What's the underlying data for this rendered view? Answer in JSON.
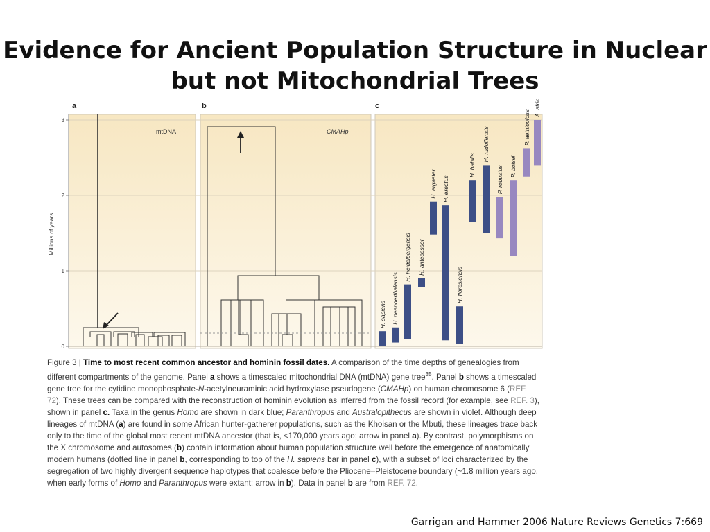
{
  "slide": {
    "title_line1": "Evidence for Ancient Population Structure in Nuclear",
    "title_line2": "but not Mitochondrial Trees",
    "citation": "Garrigan and Hammer 2006 Nature Reviews Genetics 7:669"
  },
  "figure": {
    "panel_a_label": "a",
    "panel_b_label": "b",
    "panel_c_label": "c",
    "panel_a_tree": "mtDNA",
    "panel_b_tree": "CMAHp",
    "y_axis_label": "Millions of years",
    "y_ticks": [
      "3",
      "2",
      "1",
      "0"
    ],
    "caption": {
      "fig_no": "Figure 3 | ",
      "title": "Time to most recent common ancestor and hominin fossil dates.",
      "t1": " A comparison of the time depths of genealogies from different compartments of the genome. Panel ",
      "a": "a",
      "t2": " shows a timescaled mitochondrial DNA (mtDNA) gene tree",
      "sup35": "35",
      "t3": ". Panel ",
      "b": "b",
      "t4": " shows a timescaled gene tree for the cytidine monophosphate-",
      "n": "N",
      "t5": "-acetylneuraminic acid hydroxylase pseudogene (",
      "cmahp": "CMAHp",
      "t6": ") on human chromosome 6 (",
      "ref72a": "REF. 72",
      "t7": "). These trees can be compared with the reconstruction of hominin evolution as inferred from the fossil record (for example, see ",
      "ref3": "REF. 3",
      "t8": "), shown in panel ",
      "c": "c.",
      "t9": " Taxa in the genus ",
      "homo": "Homo",
      "t10": " are shown in dark blue; ",
      "paranthropus": "Paranthropus",
      "t11": " and ",
      "australopithecus": "Australopithecus",
      "t12": " are shown in violet. Although deep lineages of mtDNA (",
      "a2": "a",
      "t13": ") are found in some African hunter-gatherer populations, such as the Khoisan or the Mbuti, these lineages trace back only to the time of the global most recent mtDNA ancestor (that is, <170,000 years ago; arrow in panel ",
      "a3": "a",
      "t14": "). By contrast, polymorphisms on the X chromosome and autosomes (",
      "b2": "b",
      "t15": ") contain information about human population structure well before the emergence of anatomically modern humans (dotted line in panel ",
      "b3": "b",
      "t16": ", corresponding to top of the ",
      "hsapiens": "H. sapiens",
      "t17": " bar in panel ",
      "c2": "c",
      "t18": "), with a subset of loci characterized by the segregation of two highly divergent sequence haplotypes that coalesce before the Pliocene–Pleistocene boundary (~1.8 million years ago, when early forms of ",
      "homo2": "Homo",
      "t19": " and ",
      "paranthropus2": "Paranthropus",
      "t20": " were extant; arrow in ",
      "b4": "b",
      "t21": "). Data in panel ",
      "b5": "b",
      "t22": " are from ",
      "ref72b": "REF. 72",
      "t23": "."
    }
  },
  "chart_data": {
    "type": "bar",
    "title": "",
    "ylabel": "Millions of years",
    "ylim": [
      0,
      3
    ],
    "y_ticks": [
      0,
      1,
      2,
      3
    ],
    "colors": {
      "homo": "#3d4f86",
      "violet": "#9888c0"
    },
    "taxa": [
      {
        "name": "H. sapiens",
        "genus_group": "Homo",
        "start": 0.0,
        "end": 0.2
      },
      {
        "name": "H. neanderthalensis",
        "genus_group": "Homo",
        "start": 0.05,
        "end": 0.25
      },
      {
        "name": "H. heidelbergensis",
        "genus_group": "Homo",
        "start": 0.1,
        "end": 0.82
      },
      {
        "name": "H. antecessor",
        "genus_group": "Homo",
        "start": 0.78,
        "end": 0.9
      },
      {
        "name": "H. ergaster",
        "genus_group": "Homo",
        "start": 1.48,
        "end": 1.92
      },
      {
        "name": "H. erectus",
        "genus_group": "Homo",
        "start": 0.08,
        "end": 1.87
      },
      {
        "name": "H. floresiensis",
        "genus_group": "Homo",
        "start": 0.03,
        "end": 0.53
      },
      {
        "name": "H. habilis",
        "genus_group": "Homo",
        "start": 1.65,
        "end": 2.2
      },
      {
        "name": "H. rudolfensis",
        "genus_group": "Homo",
        "start": 1.5,
        "end": 2.4
      },
      {
        "name": "P. robustus",
        "genus_group": "Paranthropus",
        "start": 1.43,
        "end": 1.98
      },
      {
        "name": "P. boisei",
        "genus_group": "Paranthropus",
        "start": 1.2,
        "end": 2.2
      },
      {
        "name": "P. aethiopicus",
        "genus_group": "Paranthropus",
        "start": 2.25,
        "end": 2.62
      },
      {
        "name": "A. africanus",
        "genus_group": "Australopithecus",
        "start": 2.4,
        "end": 3.0
      }
    ]
  }
}
